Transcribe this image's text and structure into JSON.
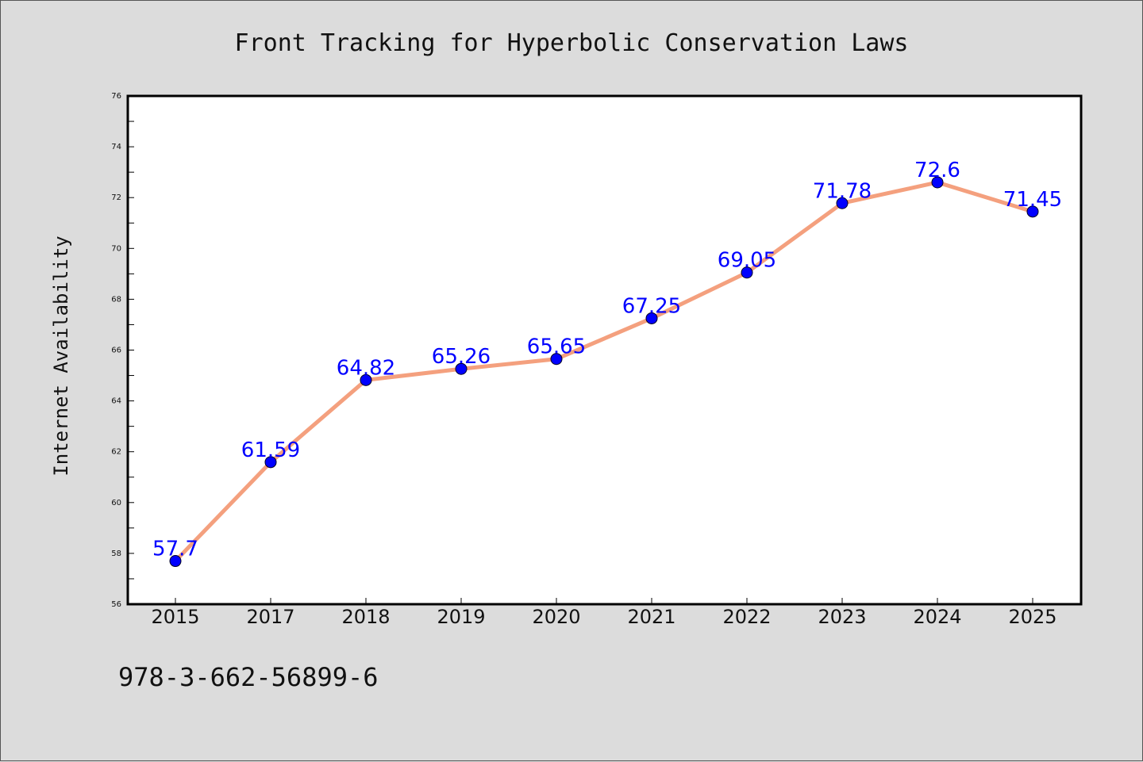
{
  "page": {
    "footer": "978-3-662-56899-6"
  },
  "colors": {
    "background": "#dcdcdc",
    "plot_background": "#ffffff",
    "line": "#f4a07e",
    "marker": "#0000ff",
    "data_label": "#0000ff",
    "axis": "#000000"
  },
  "chart_data": {
    "type": "line",
    "title": "Front Tracking for Hyperbolic Conservation Laws",
    "xlabel": "",
    "ylabel": "Internet Availability",
    "categories": [
      "2015",
      "2017",
      "2018",
      "2019",
      "2020",
      "2021",
      "2022",
      "2023",
      "2024",
      "2025"
    ],
    "series": [
      {
        "values": [
          57.7,
          61.59,
          64.82,
          65.26,
          65.65,
          67.25,
          69.05,
          71.78,
          72.6,
          71.45
        ],
        "labels": [
          "57.7",
          "61.59",
          "64.82",
          "65.26",
          "65.65",
          "67.25",
          "69.05",
          "71.78",
          "72.6",
          "71.45"
        ]
      }
    ],
    "ylim": [
      56,
      76
    ],
    "yticks": [
      "56",
      "58",
      "60",
      "62",
      "64",
      "66",
      "68",
      "70",
      "72",
      "74",
      "76"
    ],
    "grid": false,
    "legend": "none"
  }
}
